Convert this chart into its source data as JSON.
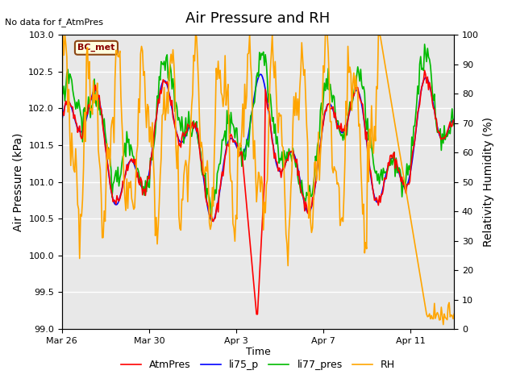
{
  "title": "Air Pressure and RH",
  "subtitle": "No data for f_AtmPres",
  "xlabel": "Time",
  "ylabel_left": "Air Pressure (kPa)",
  "ylabel_right": "Relativity Humidity (%)",
  "legend_label": "BC_met",
  "ylim_left": [
    99.0,
    103.0
  ],
  "ylim_right": [
    0,
    100
  ],
  "yticks_left": [
    99.0,
    99.5,
    100.0,
    100.5,
    101.0,
    101.5,
    102.0,
    102.5,
    103.0
  ],
  "yticks_right": [
    0,
    10,
    20,
    30,
    40,
    50,
    60,
    70,
    80,
    90,
    100
  ],
  "xtick_labels": [
    "Mar 26",
    "Mar 30",
    "Apr 3",
    "Apr 7",
    "Apr 11"
  ],
  "xtick_positions": [
    0,
    4,
    8,
    12,
    16
  ],
  "xlim": [
    0,
    18
  ],
  "colors": {
    "AtmPres": "#FF0000",
    "li75_p": "#0000FF",
    "li77_pres": "#00BB00",
    "RH": "#FFA500",
    "background": "#E8E8E8",
    "grid": "#FFFFFF"
  },
  "series_labels": [
    "AtmPres",
    "li75_p",
    "li77_pres",
    "RH"
  ],
  "n_points": 400
}
